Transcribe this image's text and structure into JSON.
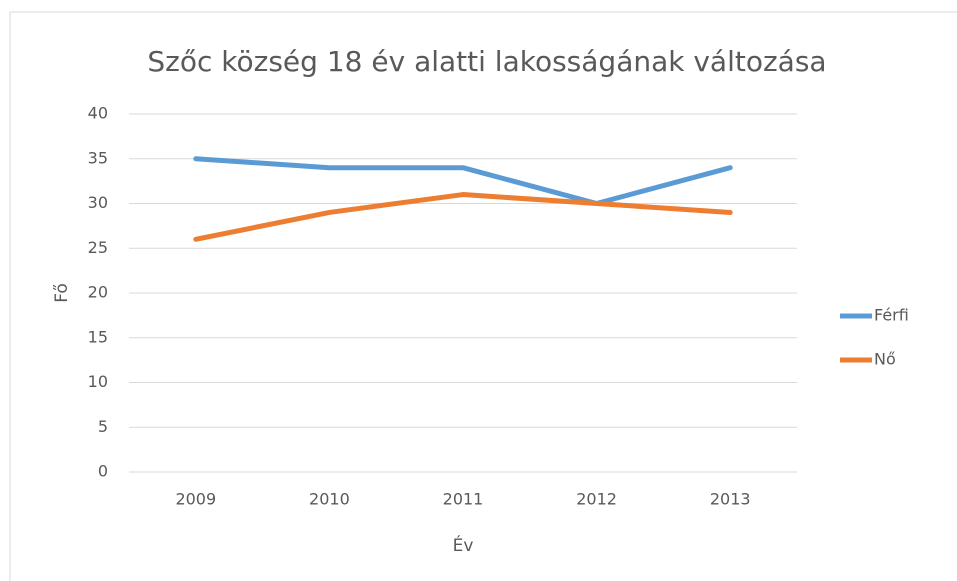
{
  "chart_data": {
    "type": "line",
    "title": "Szőc község 18 év alatti lakosságának változása",
    "x_label": "Év",
    "y_label": "Fő",
    "categories": [
      "2009",
      "2010",
      "2011",
      "2012",
      "2013"
    ],
    "series": [
      {
        "name": "Férfi",
        "color": "#5b9bd5",
        "values": [
          35,
          34,
          34,
          30,
          34
        ]
      },
      {
        "name": "Nő",
        "color": "#ed7d31",
        "values": [
          26,
          29,
          31,
          30,
          29
        ]
      }
    ],
    "ylim": [
      0,
      40
    ],
    "yticks": [
      0,
      5,
      10,
      15,
      20,
      25,
      30,
      35,
      40
    ],
    "grid": true,
    "legend": "right"
  }
}
